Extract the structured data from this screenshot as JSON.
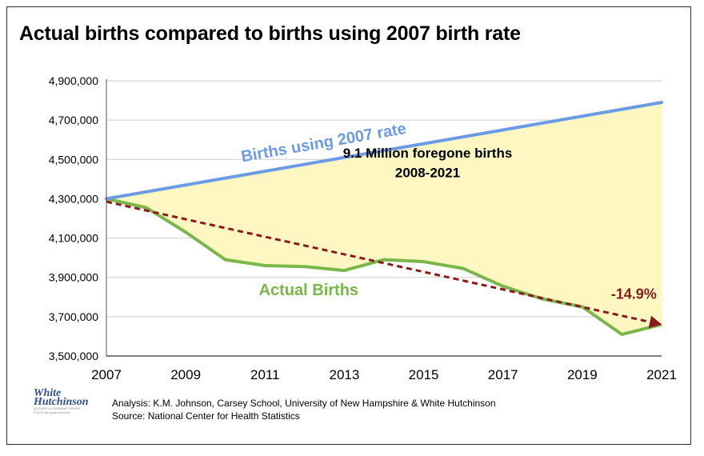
{
  "title": "Actual births compared to births using 2007 birth rate",
  "footer": {
    "analysis": "Analysis: K.M. Johnson, Carsey School, University of New Hampshire & White Hutchinson",
    "source": "Source: National Center for Health Statistics"
  },
  "logo": {
    "line1": "White",
    "line2": "Hutchinson",
    "tagline": "LEISURE & LEARNING GROUP",
    "rights": "© 2022 all rights reserved"
  },
  "colors": {
    "expected": "#6c9be6",
    "actual": "#7ab648",
    "trend": "#8b1a1a",
    "fill": "#fff7c2",
    "grid": "#cfcfcf"
  },
  "chart_data": {
    "type": "line",
    "title": "Actual births compared to births using 2007 birth rate",
    "x_ticks": [
      2007,
      2009,
      2011,
      2013,
      2015,
      2017,
      2019,
      2021
    ],
    "xlim": [
      2007,
      2021
    ],
    "ylim": [
      3500000,
      4900000
    ],
    "y_ticks": [
      3500000,
      3700000,
      3900000,
      4100000,
      4300000,
      4500000,
      4700000,
      4900000
    ],
    "y_tick_labels": [
      "3,500,000",
      "3,700,000",
      "3,900,000",
      "4,100,000",
      "4,300,000",
      "4,500,000",
      "4,700,000",
      "4,900,000"
    ],
    "grid": true,
    "series": [
      {
        "name": "Births using 2007 rate",
        "x": [
          2007,
          2021
        ],
        "y": [
          4300000,
          4790000
        ]
      },
      {
        "name": "Actual Births",
        "x": [
          2007,
          2008,
          2009,
          2010,
          2011,
          2012,
          2013,
          2014,
          2015,
          2016,
          2017,
          2018,
          2019,
          2020,
          2021
        ],
        "y": [
          4300000,
          4255000,
          4130000,
          3990000,
          3960000,
          3955000,
          3935000,
          3990000,
          3980000,
          3945000,
          3855000,
          3790000,
          3750000,
          3610000,
          3660000
        ]
      },
      {
        "x": [
          2007,
          2021
        ],
        "y": [
          4285000,
          3660000
        ]
      }
    ],
    "annotations": [
      {
        "text": "9.1 Million foregone births",
        "x": 2015.1,
        "y": 4510000
      },
      {
        "text": "2008-2021",
        "x": 2015.1,
        "y": 4410000
      },
      {
        "text": "-14.9%",
        "x": 2020.3,
        "y": 3790000
      }
    ],
    "labels": {
      "expected": {
        "text": "Births using 2007 rate",
        "x": 2012.5,
        "y": 4560000
      },
      "actual": {
        "text": "Actual Births",
        "x": 2012.1,
        "y": 3810000
      }
    }
  }
}
